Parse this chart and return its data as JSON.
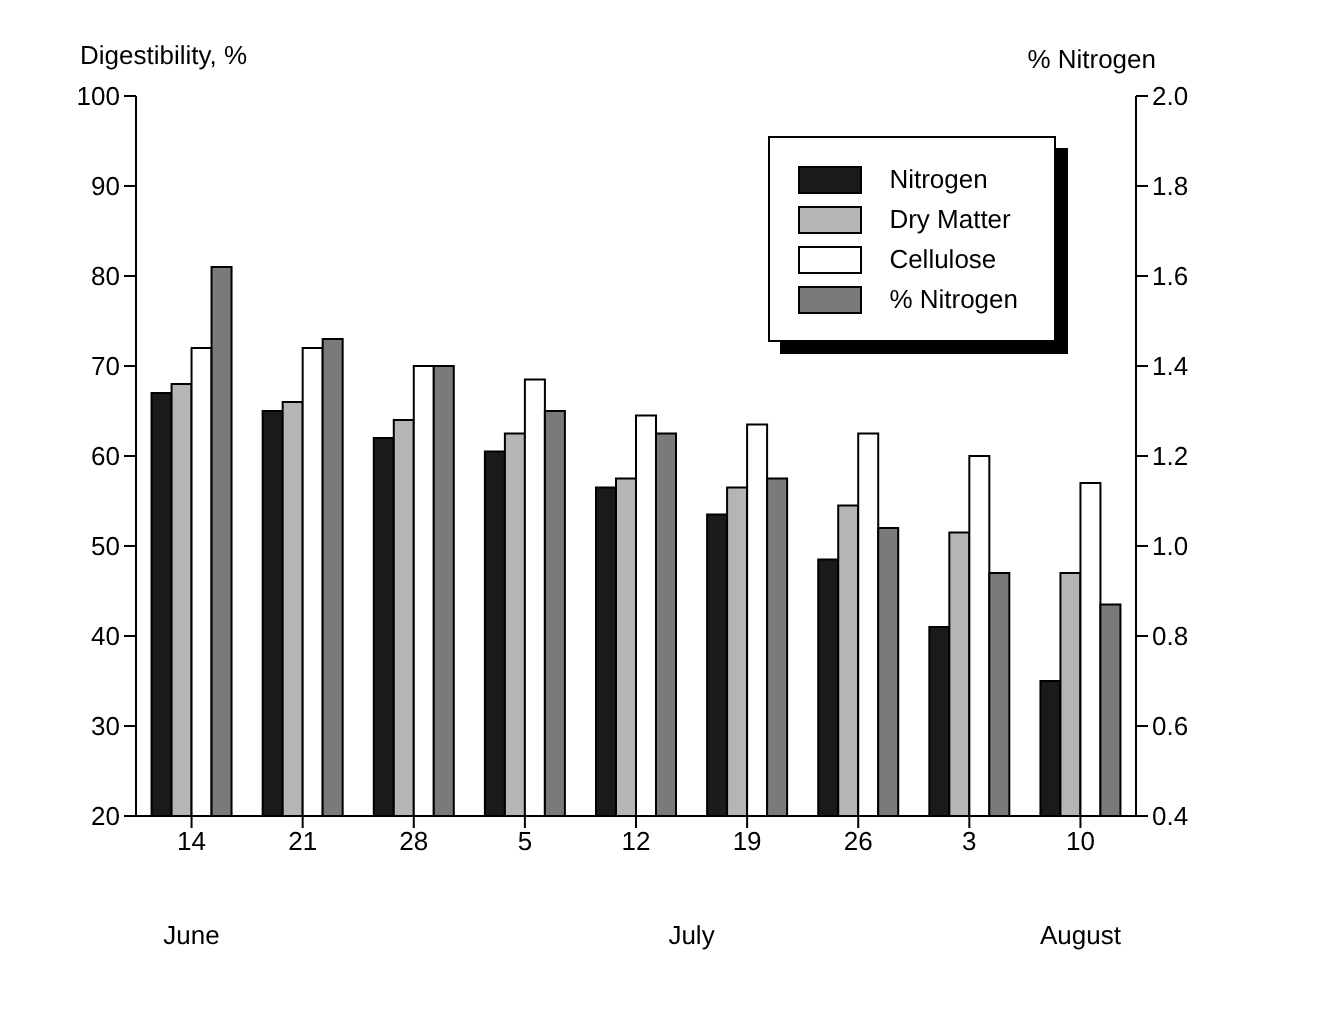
{
  "chart_data": {
    "type": "bar",
    "ylabel": "Digestibility, %",
    "y2label": "% Nitrogen",
    "categories": [
      "14",
      "21",
      "28",
      "5",
      "12",
      "19",
      "26",
      "3",
      "10"
    ],
    "annotations": [
      "June",
      "July",
      "August"
    ],
    "series": [
      {
        "name": "Nitrogen",
        "color": "#1a1a1a",
        "values": [
          67,
          65,
          62,
          60.5,
          56.5,
          53.5,
          48.5,
          41,
          35
        ]
      },
      {
        "name": "Dry Matter",
        "color": "#b5b5b5",
        "values": [
          68,
          66,
          64,
          62.5,
          57.5,
          56.5,
          54.5,
          51.5,
          47
        ]
      },
      {
        "name": "Cellulose",
        "color": "#ffffff",
        "values": [
          72,
          72,
          70,
          68.5,
          64.5,
          63.5,
          62.5,
          60,
          57
        ]
      },
      {
        "name": "% Nitrogen",
        "color": "#7a7a7a",
        "axis": "y2",
        "values": [
          1.62,
          1.46,
          1.4,
          1.3,
          1.25,
          1.15,
          1.04,
          0.94,
          0.87
        ]
      }
    ],
    "ylim": [
      20,
      100
    ],
    "yticks": [
      20,
      30,
      40,
      50,
      60,
      70,
      80,
      90,
      100
    ],
    "y2lim": [
      0.4,
      2.0
    ],
    "y2ticks": [
      0.4,
      0.6,
      0.8,
      {
        "value": 1,
        "label": "1.0"
      },
      1.2,
      1.4,
      1.6,
      1.8,
      {
        "value": 2,
        "label": "2.0"
      }
    ],
    "legend": "top right"
  }
}
